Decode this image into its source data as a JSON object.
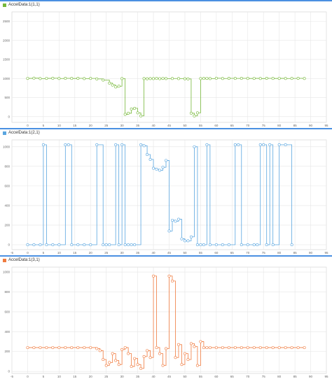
{
  "charts": {
    "x_ticks_top": [
      "0",
      "5",
      "10",
      "15",
      "20",
      "25",
      "30",
      "35",
      "40",
      "45",
      "50",
      "55",
      "60",
      "65",
      "70",
      "75",
      "80",
      "85",
      "90",
      "95"
    ],
    "x_ticks": [
      "-5",
      "0",
      "5",
      "10",
      "15",
      "20",
      "25",
      "30",
      "35",
      "40",
      "45",
      "50",
      "55",
      "60",
      "65",
      "70",
      "75",
      "80",
      "85",
      "90",
      "95"
    ]
  },
  "panels": [
    {
      "legend": "AccelData:1(1,1)",
      "color": "#77b83a",
      "y_ticks": [
        "0",
        "500",
        "1000",
        "1500",
        "2000",
        "2500"
      ]
    },
    {
      "legend": "AccelData:1(2,1)",
      "color": "#5aa6e0",
      "y_ticks": [
        "0",
        "200",
        "400",
        "600",
        "800",
        "1000"
      ]
    },
    {
      "legend": "AccelData:1(3,1)",
      "color": "#f07b3f",
      "y_ticks": [
        "0",
        "200",
        "400",
        "600",
        "800",
        "1000"
      ]
    }
  ],
  "chart_data": [
    {
      "type": "line",
      "step": true,
      "markers": "circle",
      "legend": "AccelData:1(1,1)",
      "color": "#77b83a",
      "xlim": [
        -5,
        95
      ],
      "ylim": [
        -150,
        2750
      ],
      "grid": true,
      "x": [
        0,
        2,
        4,
        6,
        8,
        10,
        12,
        14,
        16,
        18,
        20,
        22,
        24,
        26,
        27,
        28,
        29,
        30,
        31,
        32,
        33,
        34,
        35,
        36,
        37,
        38,
        39,
        40,
        41,
        42,
        43,
        44,
        46,
        48,
        50,
        51,
        52,
        53,
        54,
        55,
        56,
        57,
        58,
        60,
        62,
        64,
        66,
        68,
        70,
        72,
        74,
        76,
        78,
        80,
        82,
        84,
        86,
        88
      ],
      "y": [
        1005,
        1010,
        1000,
        1005,
        1008,
        1002,
        1007,
        1003,
        1006,
        1000,
        1004,
        990,
        960,
        880,
        830,
        780,
        800,
        1000,
        60,
        90,
        200,
        220,
        100,
        20,
        1000,
        995,
        1000,
        1000,
        1003,
        998,
        1005,
        1000,
        1002,
        1000,
        995,
        990,
        90,
        20,
        100,
        1000,
        1003,
        1005,
        1000,
        1008,
        1002,
        1006,
        1004,
        1007,
        1003,
        1005,
        1001,
        1006,
        1003,
        1005,
        1002,
        1004,
        1006,
        1002
      ],
      "y_axis": {
        "ticks": [
          0,
          500,
          1000,
          1500,
          2000,
          2500
        ]
      },
      "x_axis": {
        "ticks": [
          0,
          5,
          10,
          15,
          20,
          25,
          30,
          35,
          40,
          45,
          50,
          55,
          60,
          65,
          70,
          75,
          80,
          85,
          90,
          95
        ]
      }
    },
    {
      "type": "line",
      "step": true,
      "markers": "circle",
      "legend": "AccelData:1(2,1)",
      "color": "#5aa6e0",
      "xlim": [
        -5,
        95
      ],
      "ylim": [
        -50,
        1070
      ],
      "grid": true,
      "x": [
        0,
        2,
        4,
        5,
        6,
        8,
        10,
        12,
        13,
        14,
        16,
        18,
        20,
        22,
        24,
        25,
        26,
        28,
        29,
        30,
        31,
        32,
        33,
        34,
        36,
        37,
        38,
        39,
        40,
        41,
        42,
        43,
        44,
        45,
        46,
        47,
        48,
        49,
        50,
        51,
        52,
        53,
        54,
        55,
        56,
        57,
        58,
        60,
        62,
        64,
        66,
        67,
        68,
        70,
        72,
        73,
        74,
        75,
        76,
        77,
        78,
        80,
        82,
        84
      ],
      "y": [
        0,
        0,
        0,
        1020,
        0,
        0,
        0,
        1020,
        1020,
        0,
        0,
        0,
        0,
        1020,
        0,
        0,
        0,
        1020,
        0,
        1020,
        0,
        0,
        0,
        0,
        1020,
        1010,
        920,
        870,
        780,
        770,
        760,
        790,
        860,
        140,
        250,
        240,
        260,
        60,
        40,
        40,
        80,
        1000,
        0,
        0,
        0,
        1020,
        0,
        0,
        0,
        0,
        1020,
        1020,
        0,
        0,
        0,
        0,
        1020,
        1020,
        0,
        1020,
        0,
        1020,
        1020,
        0
      ],
      "y_axis": {
        "ticks": [
          0,
          200,
          400,
          600,
          800,
          1000
        ]
      },
      "x_axis": {
        "ticks": [
          -5,
          0,
          5,
          10,
          15,
          20,
          25,
          30,
          35,
          40,
          45,
          50,
          55,
          60,
          65,
          70,
          75,
          80,
          85,
          90,
          95
        ]
      }
    },
    {
      "type": "line",
      "step": true,
      "markers": "circle",
      "legend": "AccelData:1(3,1)",
      "color": "#f07b3f",
      "xlim": [
        -5,
        95
      ],
      "ylim": [
        -20,
        1050
      ],
      "grid": true,
      "x": [
        0,
        2,
        4,
        6,
        8,
        10,
        12,
        14,
        16,
        18,
        20,
        22,
        23,
        24,
        25,
        26,
        27,
        28,
        29,
        30,
        31,
        32,
        33,
        34,
        35,
        36,
        37,
        38,
        39,
        40,
        41,
        42,
        43,
        44,
        45,
        46,
        47,
        48,
        49,
        50,
        51,
        52,
        53,
        54,
        55,
        56,
        57,
        58,
        60,
        62,
        64,
        66,
        68,
        70,
        72,
        74,
        76,
        78,
        80,
        82,
        84,
        86,
        88
      ],
      "y": [
        240,
        240,
        240,
        240,
        240,
        240,
        240,
        240,
        240,
        240,
        240,
        230,
        210,
        120,
        60,
        90,
        180,
        110,
        70,
        220,
        240,
        180,
        50,
        130,
        70,
        30,
        150,
        210,
        140,
        960,
        240,
        180,
        60,
        230,
        960,
        910,
        140,
        270,
        70,
        180,
        120,
        280,
        250,
        60,
        300,
        240,
        240,
        240,
        240,
        240,
        240,
        240,
        240,
        240,
        240,
        240,
        240,
        240,
        240,
        240,
        240,
        240,
        240
      ],
      "y_axis": {
        "ticks": [
          0,
          200,
          400,
          600,
          800,
          1000
        ]
      },
      "x_axis": {
        "ticks": [
          -5,
          0,
          5,
          10,
          15,
          20,
          25,
          30,
          35,
          40,
          45,
          50,
          55,
          60,
          65,
          70,
          75,
          80,
          85,
          90,
          95
        ]
      }
    }
  ]
}
